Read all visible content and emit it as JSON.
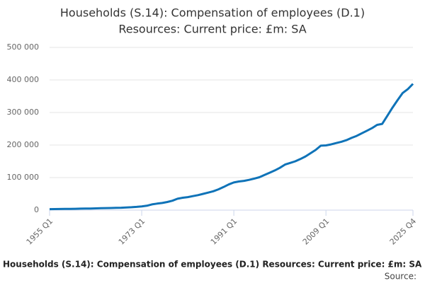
{
  "chart_data": {
    "type": "line",
    "title": "Households (S.14): Compensation of employees (D.1)",
    "subtitle": "Resources: Current price: £m: SA",
    "footer_title": "Households (S.14): Compensation of employees (D.1) Resources: Current price: £m: SA",
    "source": "Source:",
    "categories": [
      "1955 Q1",
      null,
      null,
      null,
      null,
      null,
      null,
      null,
      null,
      null,
      null,
      null,
      null,
      null,
      null,
      null,
      null,
      null,
      "1973 Q1",
      null,
      null,
      null,
      null,
      null,
      null,
      null,
      null,
      null,
      null,
      null,
      null,
      null,
      null,
      null,
      null,
      null,
      "1991 Q1",
      null,
      null,
      null,
      null,
      null,
      null,
      null,
      null,
      null,
      null,
      null,
      null,
      null,
      null,
      null,
      null,
      null,
      "2009 Q1",
      null,
      null,
      null,
      null,
      null,
      null,
      null,
      null,
      null,
      null,
      null,
      null,
      null,
      null,
      null,
      null,
      "2025 Q4"
    ],
    "series": [
      {
        "name": "Compensation of employees",
        "color": "#0f73b8",
        "values": [
          3000,
          3300,
          3500,
          3700,
          3900,
          4200,
          4500,
          4800,
          5000,
          5400,
          5800,
          6200,
          6500,
          6900,
          7400,
          8200,
          9000,
          10000,
          11500,
          13500,
          17500,
          20000,
          22000,
          25000,
          29000,
          35000,
          38000,
          40000,
          43000,
          46000,
          50000,
          54000,
          58000,
          64000,
          71000,
          79000,
          85000,
          88000,
          90000,
          93000,
          97000,
          101000,
          108000,
          115000,
          122000,
          130000,
          140000,
          145000,
          150000,
          157000,
          165000,
          175000,
          185000,
          198000,
          199000,
          202000,
          206000,
          210000,
          215000,
          222000,
          228000,
          236000,
          244000,
          252000,
          262000,
          265000,
          290000,
          315000,
          338000,
          360000,
          372000,
          388000
        ]
      }
    ],
    "ylim": [
      0,
      500000
    ],
    "yticks": [
      0,
      {
        "value": 100000,
        "label": "100 000"
      },
      {
        "value": 200000,
        "label": "200 000"
      },
      {
        "value": 300000,
        "label": "300 000"
      },
      {
        "value": 400000,
        "label": "400 000"
      },
      {
        "value": 500000,
        "label": "500 000"
      }
    ],
    "grid": true
  }
}
